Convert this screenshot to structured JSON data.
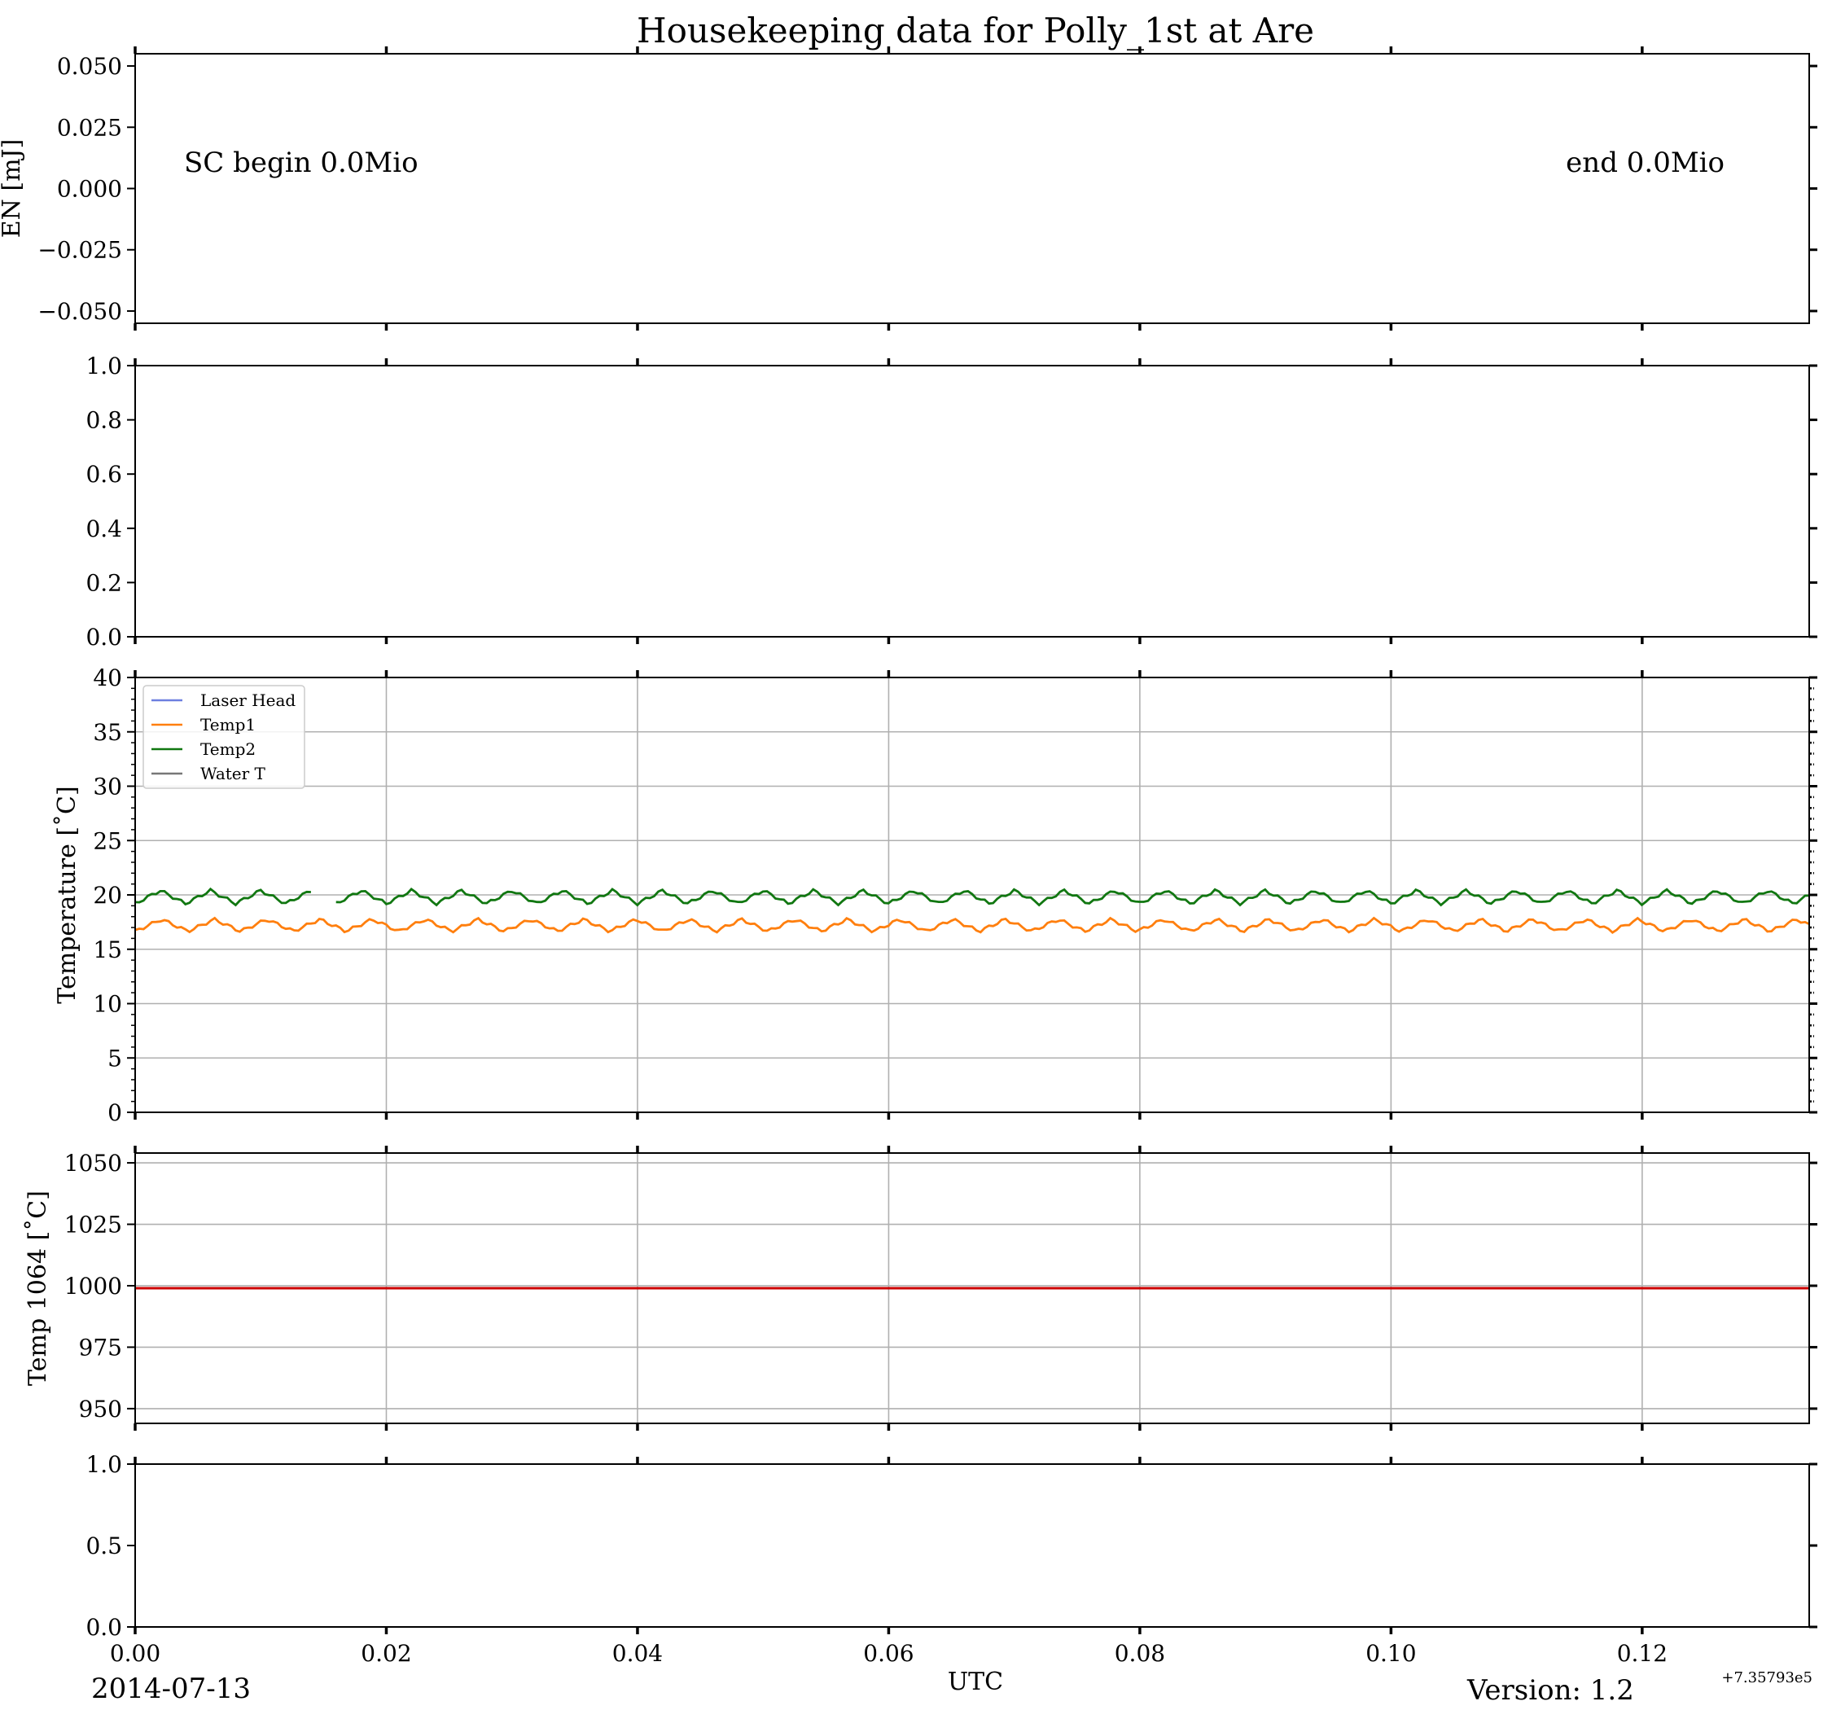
{
  "chart_data": {
    "title": "Housekeeping data for Polly_1st at Are",
    "xlabel": "UTC",
    "x_offset_label": "+7.35793e5",
    "date_label": "2014-07-13",
    "version_label": "Version: 1.2",
    "xlim": [
      0.0,
      0.1333
    ],
    "xticks": [
      "0.00",
      "0.02",
      "0.04",
      "0.06",
      "0.08",
      "0.10",
      "0.12"
    ],
    "panels": [
      {
        "type": "line",
        "ylabel": "EN [mJ]",
        "ylim": [
          -0.055,
          0.055
        ],
        "yticks": [
          "0.050",
          "0.025",
          "0.000",
          "−0.025",
          "−0.050"
        ],
        "grid": false,
        "annotations": [
          "SC begin 0.0Mio",
          "end 0.0Mio"
        ],
        "series": []
      },
      {
        "type": "line",
        "ylabel": "",
        "ylim": [
          0.0,
          1.0
        ],
        "yticks": [
          "1.0",
          "0.8",
          "0.6",
          "0.4",
          "0.2",
          "0.0"
        ],
        "grid": false,
        "series": []
      },
      {
        "type": "line",
        "ylabel": "Temperature [˚C]",
        "ylim": [
          0,
          40
        ],
        "yticks": [
          "40",
          "35",
          "30",
          "25",
          "20",
          "15",
          "10",
          "5",
          "0"
        ],
        "grid": true,
        "legend": "upper-left",
        "legend_entries": [
          "Laser Head",
          "Temp1",
          "Temp2",
          "Water T"
        ],
        "series": [
          {
            "name": "Laser Head",
            "color": "#6d7fe0",
            "values": []
          },
          {
            "name": "Temp1",
            "color": "#ff7f0e",
            "mean": 17.2,
            "amplitude": 0.55,
            "period": 0.0042
          },
          {
            "name": "Temp2",
            "color": "#117711",
            "mean": 19.8,
            "amplitude": 0.6,
            "period": 0.004,
            "gap": [
              0.0142,
              0.0157
            ]
          },
          {
            "name": "Water T",
            "color": "#777777",
            "values": []
          }
        ]
      },
      {
        "type": "line",
        "ylabel": "Temp 1064 [˚C]",
        "ylim": [
          944,
          1054
        ],
        "yticks": [
          "1050",
          "1025",
          "1000",
          "975",
          "950"
        ],
        "grid": true,
        "series": [
          {
            "name": "",
            "color": "#cc0000",
            "constant": 999
          }
        ]
      },
      {
        "type": "line",
        "ylabel": "",
        "ylim": [
          0.0,
          1.0
        ],
        "yticks": [
          "1.0",
          "0.5",
          "0.0"
        ],
        "grid": false,
        "series": []
      }
    ]
  }
}
